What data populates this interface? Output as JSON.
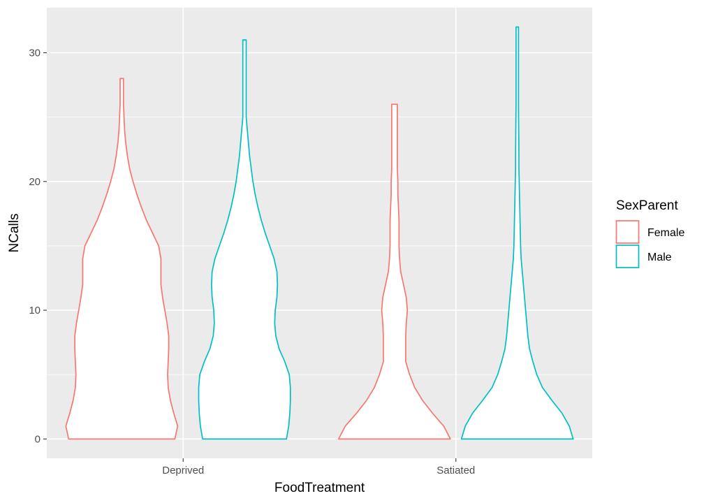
{
  "chart_data": {
    "type": "violin",
    "xlabel": "FoodTreatment",
    "ylabel": "NCalls",
    "categories": [
      "Deprived",
      "Satiated"
    ],
    "ylim": [
      -1.5,
      33.5
    ],
    "yticks": [
      0,
      10,
      20,
      30
    ],
    "grid": true,
    "legend": {
      "title": "SexParent",
      "position": "right"
    },
    "series": [
      {
        "name": "Female",
        "color": "#F8766D",
        "violins": [
          {
            "category": "Deprived",
            "min": 0,
            "max": 28,
            "profile": [
              [
                0,
                0.95
              ],
              [
                1,
                1.0
              ],
              [
                2,
                0.93
              ],
              [
                3,
                0.87
              ],
              [
                4,
                0.83
              ],
              [
                5,
                0.82
              ],
              [
                6,
                0.83
              ],
              [
                7,
                0.84
              ],
              [
                8,
                0.84
              ],
              [
                9,
                0.81
              ],
              [
                10,
                0.77
              ],
              [
                11,
                0.73
              ],
              [
                12,
                0.7
              ],
              [
                13,
                0.7
              ],
              [
                14,
                0.7
              ],
              [
                15,
                0.66
              ],
              [
                16,
                0.55
              ],
              [
                17,
                0.44
              ],
              [
                18,
                0.35
              ],
              [
                19,
                0.27
              ],
              [
                20,
                0.2
              ],
              [
                21,
                0.14
              ],
              [
                22,
                0.1
              ],
              [
                23,
                0.07
              ],
              [
                24,
                0.05
              ],
              [
                25,
                0.04
              ],
              [
                26,
                0.03
              ],
              [
                27,
                0.03
              ],
              [
                28,
                0.03
              ]
            ]
          },
          {
            "category": "Satiated",
            "min": 0,
            "max": 26,
            "profile": [
              [
                0,
                1.0
              ],
              [
                1,
                0.88
              ],
              [
                2,
                0.68
              ],
              [
                3,
                0.5
              ],
              [
                4,
                0.36
              ],
              [
                5,
                0.27
              ],
              [
                6,
                0.2
              ],
              [
                7,
                0.2
              ],
              [
                8,
                0.2
              ],
              [
                9,
                0.21
              ],
              [
                10,
                0.23
              ],
              [
                11,
                0.21
              ],
              [
                12,
                0.16
              ],
              [
                13,
                0.11
              ],
              [
                14,
                0.09
              ],
              [
                15,
                0.08
              ],
              [
                16,
                0.08
              ],
              [
                17,
                0.08
              ],
              [
                18,
                0.07
              ],
              [
                19,
                0.06
              ],
              [
                20,
                0.06
              ],
              [
                21,
                0.05
              ],
              [
                22,
                0.05
              ],
              [
                23,
                0.05
              ],
              [
                24,
                0.05
              ],
              [
                25,
                0.05
              ],
              [
                26,
                0.05
              ]
            ]
          }
        ]
      },
      {
        "name": "Male",
        "color": "#00BFC4",
        "violins": [
          {
            "category": "Deprived",
            "min": 0,
            "max": 31,
            "profile": [
              [
                0,
                0.75
              ],
              [
                1,
                0.79
              ],
              [
                2,
                0.81
              ],
              [
                3,
                0.82
              ],
              [
                4,
                0.82
              ],
              [
                5,
                0.8
              ],
              [
                6,
                0.72
              ],
              [
                7,
                0.62
              ],
              [
                8,
                0.56
              ],
              [
                9,
                0.54
              ],
              [
                10,
                0.55
              ],
              [
                11,
                0.58
              ],
              [
                12,
                0.59
              ],
              [
                13,
                0.58
              ],
              [
                14,
                0.53
              ],
              [
                15,
                0.45
              ],
              [
                16,
                0.37
              ],
              [
                17,
                0.3
              ],
              [
                18,
                0.24
              ],
              [
                19,
                0.19
              ],
              [
                20,
                0.15
              ],
              [
                21,
                0.12
              ],
              [
                22,
                0.09
              ],
              [
                23,
                0.07
              ],
              [
                24,
                0.05
              ],
              [
                25,
                0.03
              ],
              [
                26,
                0.03
              ],
              [
                27,
                0.03
              ],
              [
                28,
                0.03
              ],
              [
                29,
                0.03
              ],
              [
                30,
                0.03
              ],
              [
                31,
                0.03
              ]
            ]
          },
          {
            "category": "Satiated",
            "min": 0,
            "max": 32,
            "profile": [
              [
                0,
                1.0
              ],
              [
                1,
                0.93
              ],
              [
                2,
                0.8
              ],
              [
                3,
                0.62
              ],
              [
                4,
                0.45
              ],
              [
                5,
                0.35
              ],
              [
                6,
                0.28
              ],
              [
                7,
                0.22
              ],
              [
                8,
                0.19
              ],
              [
                9,
                0.17
              ],
              [
                10,
                0.15
              ],
              [
                11,
                0.13
              ],
              [
                12,
                0.11
              ],
              [
                13,
                0.09
              ],
              [
                14,
                0.07
              ],
              [
                15,
                0.06
              ],
              [
                16,
                0.055
              ],
              [
                17,
                0.05
              ],
              [
                18,
                0.045
              ],
              [
                19,
                0.04
              ],
              [
                20,
                0.035
              ],
              [
                21,
                0.03
              ],
              [
                22,
                0.03
              ],
              [
                23,
                0.028
              ],
              [
                24,
                0.026
              ],
              [
                25,
                0.024
              ],
              [
                26,
                0.022
              ],
              [
                27,
                0.022
              ],
              [
                28,
                0.022
              ],
              [
                29,
                0.022
              ],
              [
                30,
                0.022
              ],
              [
                31,
                0.022
              ],
              [
                32,
                0.022
              ]
            ]
          }
        ]
      }
    ]
  }
}
